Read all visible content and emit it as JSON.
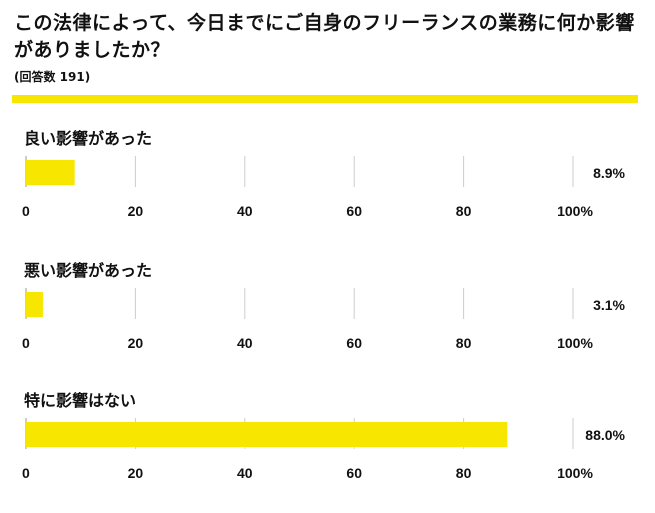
{
  "title": "この法律によって、今日までにご自身のフリーランスの業務に何か影響がありましたか？",
  "subtitle": "(回答数 191)",
  "colors": {
    "bar": "#f7e600",
    "grid": "#cccccc",
    "rule": "#f7e600"
  },
  "chart_data": [
    {
      "type": "bar",
      "orientation": "horizontal",
      "title": "良い影響があった",
      "value": 8.9,
      "value_label": "8.9%",
      "xlim": [
        0,
        100
      ],
      "ticks": [
        "0",
        "20",
        "40",
        "60",
        "80",
        "100%"
      ]
    },
    {
      "type": "bar",
      "orientation": "horizontal",
      "title": "悪い影響があった",
      "value": 3.1,
      "value_label": "3.1%",
      "xlim": [
        0,
        100
      ],
      "ticks": [
        "0",
        "20",
        "40",
        "60",
        "80",
        "100%"
      ]
    },
    {
      "type": "bar",
      "orientation": "horizontal",
      "title": "特に影響はない",
      "value": 88.0,
      "value_label": "88.0%",
      "xlim": [
        0,
        100
      ],
      "ticks": [
        "0",
        "20",
        "40",
        "60",
        "80",
        "100%"
      ]
    }
  ]
}
